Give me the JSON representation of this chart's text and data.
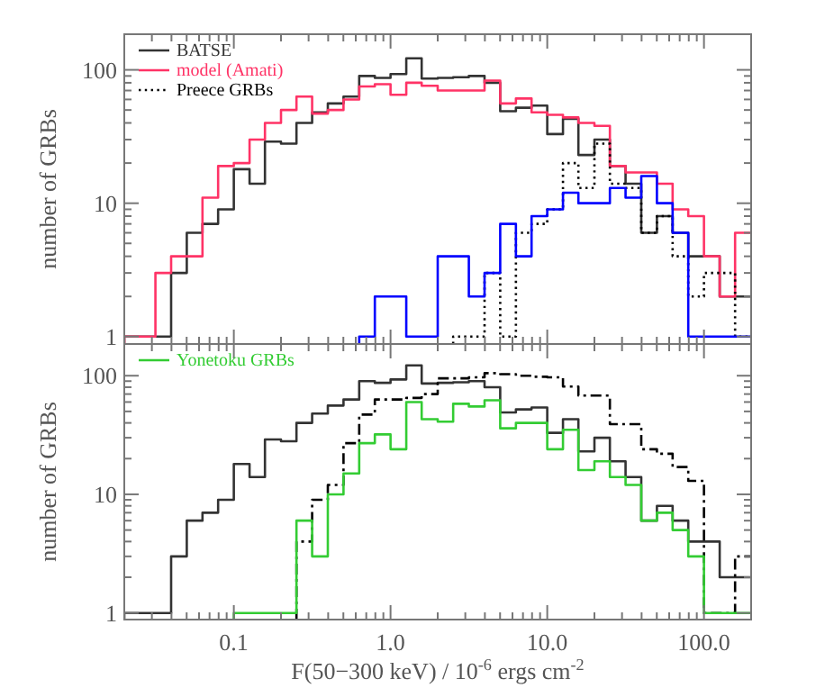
{
  "chart_data": [
    {
      "type": "histogram",
      "ylabel": "number of GRBs",
      "log": "xy",
      "legend": "top left",
      "tick_labels": "y",
      "bins": [
        0.02,
        0.0251,
        0.0316,
        0.0398,
        0.0501,
        0.0631,
        0.0794,
        0.1,
        0.126,
        0.158,
        0.2,
        0.251,
        0.316,
        0.398,
        0.501,
        0.631,
        0.794,
        1,
        1.26,
        1.58,
        2,
        2.51,
        3.16,
        3.98,
        5.01,
        6.31,
        7.94,
        10,
        12.6,
        15.8,
        20,
        25.1,
        31.6,
        39.8,
        50.1,
        63.1,
        79.4,
        100,
        126,
        158,
        200
      ],
      "xlim": [
        0.02,
        200
      ],
      "ylim": [
        0.88,
        185
      ],
      "xticks": [
        {
          "value": 0.03,
          "label": null
        },
        {
          "value": 0.04,
          "label": null
        },
        {
          "value": 0.05,
          "label": null
        },
        {
          "value": 0.06,
          "label": null
        },
        {
          "value": 0.07,
          "label": null
        },
        {
          "value": 0.08,
          "label": null
        },
        {
          "value": 0.09,
          "label": null
        },
        {
          "value": 0.1,
          "label": null
        },
        {
          "value": 0.2,
          "label": null
        },
        {
          "value": 0.3,
          "label": null
        },
        {
          "value": 0.4,
          "label": null
        },
        {
          "value": 0.5,
          "label": null
        },
        {
          "value": 0.6,
          "label": null
        },
        {
          "value": 0.7,
          "label": null
        },
        {
          "value": 0.8,
          "label": null
        },
        {
          "value": 0.9,
          "label": null
        },
        {
          "value": 1,
          "label": null
        },
        {
          "value": 2,
          "label": null
        },
        {
          "value": 3,
          "label": null
        },
        {
          "value": 4,
          "label": null
        },
        {
          "value": 5,
          "label": null
        },
        {
          "value": 6,
          "label": null
        },
        {
          "value": 7,
          "label": null
        },
        {
          "value": 8,
          "label": null
        },
        {
          "value": 9,
          "label": null
        },
        {
          "value": 10,
          "label": null
        },
        {
          "value": 20,
          "label": null
        },
        {
          "value": 30,
          "label": null
        },
        {
          "value": 40,
          "label": null
        },
        {
          "value": 50,
          "label": null
        },
        {
          "value": 60,
          "label": null
        },
        {
          "value": 70,
          "label": null
        },
        {
          "value": 80,
          "label": null
        },
        {
          "value": 90,
          "label": null
        },
        {
          "value": 100,
          "label": null
        }
      ],
      "yticks": [
        1,
        {
          "value": 2,
          "label": null
        },
        {
          "value": 3,
          "label": null
        },
        {
          "value": 4,
          "label": null
        },
        {
          "value": 5,
          "label": null
        },
        {
          "value": 6,
          "label": null
        },
        {
          "value": 7,
          "label": null
        },
        {
          "value": 8,
          "label": null
        },
        {
          "value": 9,
          "label": null
        },
        10,
        {
          "value": 20,
          "label": null
        },
        {
          "value": 30,
          "label": null
        },
        {
          "value": 40,
          "label": null
        },
        {
          "value": 50,
          "label": null
        },
        {
          "value": 60,
          "label": null
        },
        {
          "value": 70,
          "label": null
        },
        {
          "value": 80,
          "label": null
        },
        {
          "value": 90,
          "label": null
        },
        100
      ],
      "series": [
        {
          "name": "BATSE",
          "color": "#333333",
          "line_style": "solid",
          "values": [
            1,
            1,
            1,
            3,
            6,
            7,
            9,
            18,
            14,
            29,
            28,
            40,
            48,
            56,
            63,
            90,
            87,
            93,
            122,
            86,
            87,
            88,
            90,
            80,
            49,
            52,
            54,
            33,
            43,
            23,
            30,
            19,
            14,
            6,
            8,
            6,
            4,
            4,
            2,
            2
          ]
        },
        {
          "name": "model (Amati)",
          "color": "#ff3366",
          "line_style": "solid",
          "values": [
            1,
            1,
            3,
            4,
            4,
            11,
            19,
            20,
            30,
            40,
            50,
            63,
            47,
            50,
            60,
            75,
            78,
            65,
            80,
            76,
            70,
            70,
            70,
            83,
            56,
            61,
            48,
            46,
            44,
            40,
            38,
            19,
            17,
            17,
            14,
            9,
            8,
            4,
            2,
            6
          ]
        },
        {
          "name": "Preece GRBs",
          "color": "#000000",
          "line_style": "dotted",
          "bins": [
            2.51,
            3.16,
            3.98,
            5.01,
            6.31,
            7.94,
            10,
            12.6,
            15.8,
            20,
            25.1,
            31.6,
            39.8,
            50.1,
            63.1,
            79.4,
            100,
            126,
            158,
            200
          ],
          "values": [
            1,
            1,
            3,
            1,
            6,
            7,
            9,
            20,
            13,
            28,
            14,
            13,
            6,
            8,
            4,
            2,
            3,
            3,
            1
          ]
        },
        {
          "color": "#0000ff",
          "line_style": "solid",
          "bins": [
            0.631,
            0.794,
            1,
            1.26,
            1.58,
            2,
            2.51,
            3.16,
            3.98,
            5.01,
            6.31,
            7.94,
            10,
            12.6,
            15.8,
            20,
            25.1,
            31.6,
            39.8,
            50.1,
            63.1,
            79.4,
            100,
            126,
            158,
            200
          ],
          "values": [
            1,
            2,
            2,
            1,
            1,
            4,
            4,
            2,
            3,
            7,
            4,
            8,
            9,
            12,
            10,
            10,
            13,
            11,
            16,
            10,
            6,
            1,
            1,
            1,
            1
          ]
        }
      ]
    },
    {
      "type": "histogram",
      "ylabel": "number of GRBs",
      "xlabel": "F(50−300 keV) / 10$^{-6}$ ergs cm$^{-2}$",
      "log": "xy",
      "legend": "top left",
      "bins": [
        0.02,
        0.0251,
        0.0316,
        0.0398,
        0.0501,
        0.0631,
        0.0794,
        0.1,
        0.126,
        0.158,
        0.2,
        0.251,
        0.316,
        0.398,
        0.501,
        0.631,
        0.794,
        1,
        1.26,
        1.58,
        2,
        2.51,
        3.16,
        3.98,
        5.01,
        6.31,
        7.94,
        10,
        12.6,
        15.8,
        20,
        25.1,
        31.6,
        39.8,
        50.1,
        63.1,
        79.4,
        100,
        126,
        158,
        200
      ],
      "xlim": [
        0.02,
        200
      ],
      "ylim": [
        0.88,
        185
      ],
      "xticks": [
        {
          "value": 0.03,
          "label": null
        },
        {
          "value": 0.04,
          "label": null
        },
        {
          "value": 0.05,
          "label": null
        },
        {
          "value": 0.06,
          "label": null
        },
        {
          "value": 0.07,
          "label": null
        },
        {
          "value": 0.08,
          "label": null
        },
        {
          "value": 0.09,
          "label": null
        },
        {
          "value": 0.1,
          "label": "0.1"
        },
        {
          "value": 0.2,
          "label": null
        },
        {
          "value": 0.3,
          "label": null
        },
        {
          "value": 0.4,
          "label": null
        },
        {
          "value": 0.5,
          "label": null
        },
        {
          "value": 0.6,
          "label": null
        },
        {
          "value": 0.7,
          "label": null
        },
        {
          "value": 0.8,
          "label": null
        },
        {
          "value": 0.9,
          "label": null
        },
        {
          "value": 1,
          "label": "1.0"
        },
        {
          "value": 2,
          "label": null
        },
        {
          "value": 3,
          "label": null
        },
        {
          "value": 4,
          "label": null
        },
        {
          "value": 5,
          "label": null
        },
        {
          "value": 6,
          "label": null
        },
        {
          "value": 7,
          "label": null
        },
        {
          "value": 8,
          "label": null
        },
        {
          "value": 9,
          "label": null
        },
        {
          "value": 10,
          "label": "10.0"
        },
        {
          "value": 20,
          "label": null
        },
        {
          "value": 30,
          "label": null
        },
        {
          "value": 40,
          "label": null
        },
        {
          "value": 50,
          "label": null
        },
        {
          "value": 60,
          "label": null
        },
        {
          "value": 70,
          "label": null
        },
        {
          "value": 80,
          "label": null
        },
        {
          "value": 90,
          "label": null
        },
        {
          "value": 100,
          "label": "100.0"
        }
      ],
      "yticks": [
        1,
        {
          "value": 2,
          "label": null
        },
        {
          "value": 3,
          "label": null
        },
        {
          "value": 4,
          "label": null
        },
        {
          "value": 5,
          "label": null
        },
        {
          "value": 6,
          "label": null
        },
        {
          "value": 7,
          "label": null
        },
        {
          "value": 8,
          "label": null
        },
        {
          "value": 9,
          "label": null
        },
        10,
        {
          "value": 20,
          "label": null
        },
        {
          "value": 30,
          "label": null
        },
        {
          "value": 40,
          "label": null
        },
        {
          "value": 50,
          "label": null
        },
        {
          "value": 60,
          "label": null
        },
        {
          "value": 70,
          "label": null
        },
        {
          "value": 80,
          "label": null
        },
        {
          "value": 90,
          "label": null
        },
        100
      ],
      "series": [
        {
          "color": "#333333",
          "line_style": "solid",
          "values": [
            1,
            1,
            1,
            3,
            6,
            7,
            9,
            18,
            14,
            29,
            28,
            40,
            48,
            56,
            63,
            90,
            87,
            93,
            122,
            86,
            87,
            88,
            90,
            80,
            49,
            52,
            54,
            33,
            43,
            23,
            30,
            19,
            14,
            6,
            8,
            6,
            4,
            4,
            2,
            2
          ]
        },
        {
          "color": "#000000",
          "line_style": "dashdot",
          "bins": [
            0.251,
            0.316,
            0.398,
            0.501,
            0.631,
            0.794,
            1,
            1.26,
            1.58,
            2,
            2.51,
            3.16,
            3.98,
            5.01,
            6.31,
            7.94,
            10,
            12.6,
            15.8,
            20,
            25.1,
            31.6,
            39.8,
            50.1,
            63.1,
            79.4,
            100,
            126,
            158,
            200
          ],
          "values": [
            4,
            9,
            12,
            27,
            47,
            63,
            63,
            65,
            70,
            95,
            95,
            97,
            105,
            103,
            100,
            98,
            97,
            81,
            68,
            68,
            39,
            39,
            24,
            22,
            17,
            13,
            1,
            1,
            3
          ]
        },
        {
          "name": "Yonetoku GRBs",
          "color": "#33cc33",
          "line_style": "solid",
          "bins": [
            0.1,
            0.126,
            0.158,
            0.2,
            0.251,
            0.316,
            0.398,
            0.501,
            0.631,
            0.794,
            1,
            1.26,
            1.58,
            2,
            2.51,
            3.16,
            3.98,
            5.01,
            6.31,
            7.94,
            10,
            12.6,
            15.8,
            20,
            25.1,
            31.6,
            39.8,
            50.1,
            63.1,
            79.4,
            100,
            126,
            158,
            200
          ],
          "values": [
            1,
            1,
            1,
            1,
            6,
            3,
            10,
            15,
            27,
            32,
            24,
            60,
            43,
            41,
            58,
            55,
            62,
            36,
            40,
            40,
            24,
            35,
            16,
            19,
            14,
            12,
            6,
            7,
            5,
            3,
            1,
            1,
            1
          ]
        }
      ]
    }
  ]
}
